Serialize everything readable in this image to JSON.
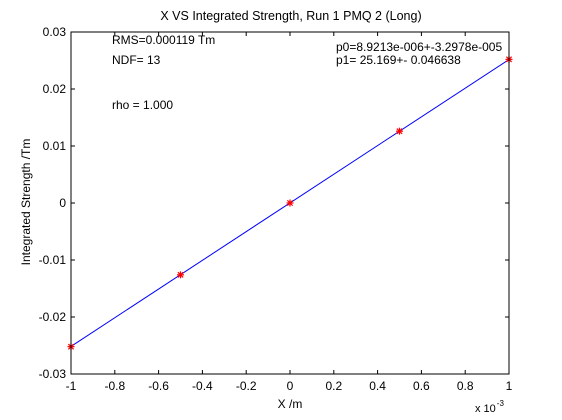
{
  "chart_data": {
    "type": "scatter",
    "title": "X VS Integrated Strength, Run 1 PMQ 2 (Long)",
    "xlabel": "X /m",
    "ylabel": "Integrated Strength /Tm",
    "x_scale_note": {
      "base": "x 10",
      "exponent": "-3"
    },
    "xlim": [
      -0.001,
      0.001
    ],
    "ylim": [
      -0.03,
      0.03
    ],
    "x_ticks": [
      -0.001,
      -0.0008,
      -0.0006,
      -0.0004,
      -0.0002,
      0,
      0.0002,
      0.0004,
      0.0006,
      0.0008,
      0.001
    ],
    "x_tick_labels": [
      "-1",
      "-0.8",
      "-0.6",
      "-0.4",
      "-0.2",
      "0",
      "0.2",
      "0.4",
      "0.6",
      "0.8",
      "1"
    ],
    "y_ticks": [
      -0.03,
      -0.02,
      -0.01,
      0,
      0.01,
      0.02,
      0.03
    ],
    "y_tick_labels": [
      "-0.03",
      "-0.02",
      "-0.01",
      "0",
      "0.01",
      "0.02",
      "0.03"
    ],
    "grid": false,
    "series": [
      {
        "kind": "markers",
        "marker": "*",
        "color": "#ff0000",
        "x": [
          -0.001,
          -0.0005,
          0,
          0.0005,
          0.001
        ],
        "y": [
          -0.0252,
          -0.0126,
          0.0,
          0.0126,
          0.0252
        ]
      },
      {
        "kind": "fit-line",
        "color": "#0000ff",
        "intercept": 8.9213e-06,
        "slope": 25.169,
        "x_range": [
          -0.001,
          0.001
        ]
      }
    ],
    "annotations": {
      "rms": "RMS=0.000119 Tm",
      "ndf": "NDF=   13",
      "rho": "rho    =  1.000",
      "p0": "p0=8.9213e-006+-3.2978e-005",
      "p1": "p1=   25.169+- 0.046638"
    }
  }
}
